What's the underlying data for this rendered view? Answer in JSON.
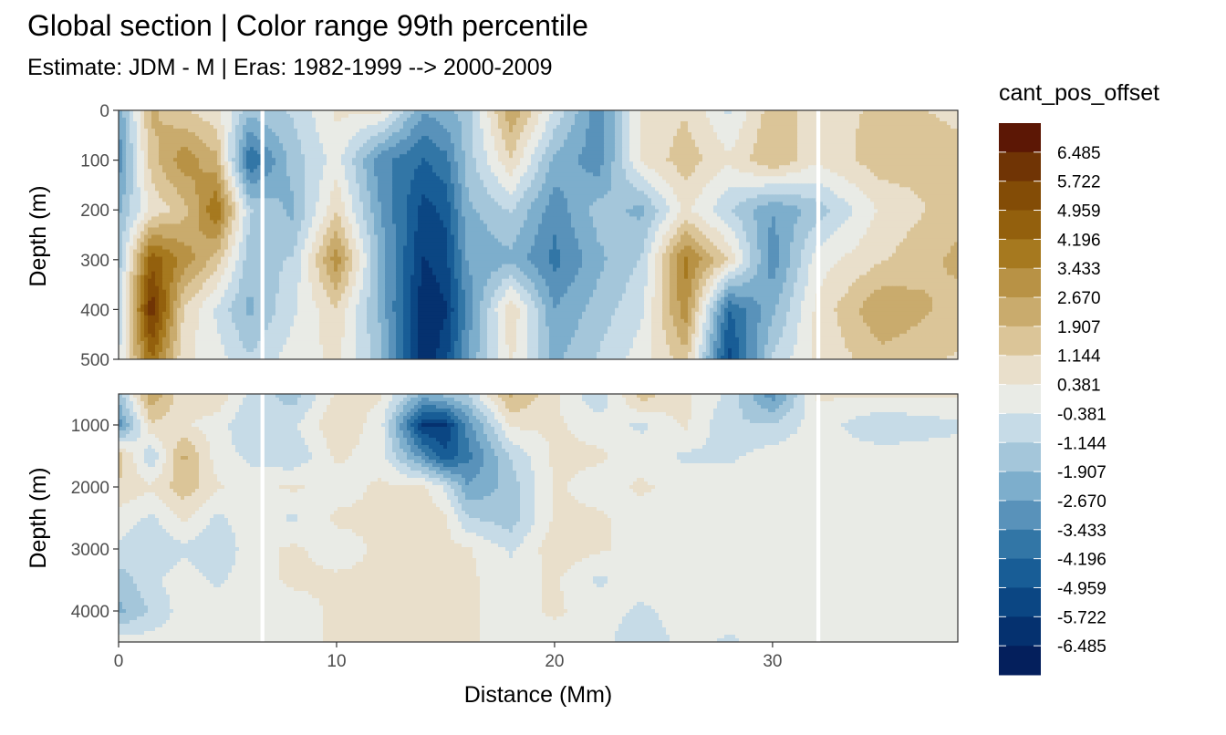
{
  "chart_data": {
    "type": "heatmap",
    "title": "Global section | Color range 99th percentile",
    "subtitle": "Estimate: JDM - M | Eras: 1982-1999 --> 2000-2009",
    "xlabel": "Distance (Mm)",
    "ylabel": "Depth (m)",
    "xlim": [
      0,
      38.5
    ],
    "x_ticks": [
      0,
      10,
      20,
      30
    ],
    "panels": [
      {
        "ylim": [
          0,
          500
        ],
        "y_ticks": [
          0,
          100,
          200,
          300,
          400,
          500
        ],
        "y_reversed": true
      },
      {
        "ylim": [
          500,
          4500
        ],
        "y_ticks": [
          1000,
          2000,
          3000,
          4000
        ],
        "y_reversed": true
      }
    ],
    "legend": {
      "title": "cant_pos_offset",
      "position": "right",
      "labels": [
        "6.485",
        "5.722",
        "4.959",
        "4.196",
        "3.433",
        "2.670",
        "1.907",
        "1.144",
        "0.381",
        "-0.381",
        "-1.144",
        "-1.907",
        "-2.670",
        "-3.433",
        "-4.196",
        "-4.959",
        "-5.722",
        "-6.485"
      ],
      "colors": [
        "#5c1705",
        "#703405",
        "#834c06",
        "#93600d",
        "#a6791f",
        "#b89245",
        "#c9ab6d",
        "#dbc598",
        "#e9dfcb",
        "#e9ebe6",
        "#c6dbe7",
        "#a4c6da",
        "#7daecc",
        "#5992ba",
        "#3276a6",
        "#185d96",
        "#0b4683",
        "#05316f",
        "#041f5c"
      ]
    },
    "field_note": "values estimated by eye from filled contours",
    "distance_nodes": [
      0,
      1.5,
      3,
      4.5,
      6,
      8,
      10,
      12,
      14,
      15,
      16,
      18,
      20,
      22,
      24,
      26,
      28,
      30,
      32,
      35,
      38.5
    ],
    "upper_depth_nodes": [
      0,
      100,
      200,
      300,
      400,
      500
    ],
    "upper_values": [
      [
        -2.5,
        2.0,
        1.2,
        0.5,
        -1.5,
        -1.0,
        0.5,
        0.5,
        -2.5,
        -2.0,
        -1.5,
        2.5,
        -0.5,
        -3.0,
        0.5,
        1.0,
        -0.5,
        1.5,
        0.8,
        1.2,
        1.0
      ],
      [
        -3.0,
        1.5,
        3.0,
        2.0,
        -4.0,
        -1.5,
        0.0,
        -3.0,
        -4.0,
        -3.5,
        -1.5,
        1.0,
        -2.0,
        -3.0,
        0.5,
        1.5,
        0.5,
        1.8,
        0.5,
        1.5,
        1.2
      ],
      [
        -2.0,
        0.5,
        1.5,
        4.0,
        -1.0,
        -2.0,
        1.0,
        -2.5,
        -5.0,
        -4.5,
        -2.0,
        -1.0,
        -3.0,
        -1.5,
        -2.0,
        0.5,
        -1.0,
        -2.5,
        -1.5,
        0.5,
        1.5
      ],
      [
        -1.5,
        4.5,
        3.0,
        1.5,
        -1.5,
        -1.0,
        3.0,
        -2.0,
        -5.5,
        -5.0,
        -2.5,
        -2.0,
        -3.5,
        -2.0,
        -1.0,
        3.5,
        1.0,
        -3.0,
        0.0,
        1.0,
        2.0
      ],
      [
        -1.0,
        6.0,
        1.0,
        -0.5,
        -2.0,
        -0.5,
        1.0,
        -2.0,
        -6.0,
        -5.5,
        -3.0,
        1.0,
        -2.5,
        -1.5,
        -0.5,
        3.0,
        -4.0,
        -2.0,
        0.5,
        2.5,
        1.5
      ],
      [
        -0.5,
        4.0,
        0.5,
        0.0,
        -1.0,
        0.0,
        0.5,
        -1.5,
        -6.0,
        -5.0,
        -2.5,
        0.5,
        -2.0,
        -1.0,
        0.0,
        1.5,
        -5.0,
        -1.0,
        0.5,
        1.5,
        1.0
      ]
    ],
    "lower_depth_nodes": [
      500,
      1000,
      1500,
      2000,
      2500,
      3000,
      3500,
      4000,
      4500
    ],
    "lower_values": [
      [
        -1.5,
        2.5,
        0.5,
        1.0,
        -0.5,
        -1.5,
        0.5,
        0.5,
        -2.0,
        -1.5,
        -1.0,
        2.0,
        0.5,
        -1.0,
        1.5,
        0.5,
        -0.5,
        -3.0,
        0.5,
        0.5,
        0.5
      ],
      [
        -3.0,
        1.0,
        0.5,
        0.0,
        -1.0,
        -0.5,
        1.0,
        0.0,
        -5.5,
        -5.5,
        -3.0,
        0.5,
        0.5,
        0.0,
        -0.5,
        0.5,
        -1.0,
        -1.0,
        0.0,
        -1.0,
        -0.5
      ],
      [
        1.5,
        -1.0,
        2.0,
        0.0,
        -0.5,
        -1.0,
        0.5,
        0.0,
        -3.0,
        -4.5,
        -3.5,
        -1.0,
        0.5,
        0.5,
        0.0,
        -0.5,
        -0.5,
        0.0,
        0.0,
        0.0,
        0.0
      ],
      [
        1.0,
        0.5,
        1.5,
        0.5,
        0.0,
        0.5,
        0.0,
        0.5,
        0.5,
        -0.5,
        -2.5,
        -1.5,
        0.5,
        0.0,
        0.5,
        0.0,
        0.0,
        0.0,
        0.0,
        0.0,
        0.0
      ],
      [
        0.0,
        -0.5,
        0.5,
        -0.5,
        0.0,
        -0.5,
        0.5,
        0.5,
        0.8,
        0.5,
        -1.0,
        -1.5,
        0.5,
        0.5,
        0.0,
        0.0,
        0.0,
        0.0,
        0.0,
        0.0,
        0.0
      ],
      [
        -0.5,
        -1.0,
        -0.5,
        -1.0,
        0.0,
        0.5,
        0.0,
        0.5,
        0.8,
        0.5,
        0.5,
        -0.5,
        0.8,
        0.5,
        0.0,
        0.0,
        0.0,
        0.0,
        0.0,
        0.0,
        0.0
      ],
      [
        -1.5,
        -0.5,
        0.0,
        -0.5,
        0.0,
        0.5,
        0.5,
        0.5,
        0.5,
        0.5,
        0.5,
        0.0,
        0.5,
        -0.5,
        0.0,
        0.0,
        0.0,
        0.0,
        0.0,
        0.0,
        0.0
      ],
      [
        -2.0,
        -1.0,
        0.0,
        0.0,
        0.0,
        0.0,
        0.5,
        0.5,
        0.5,
        0.5,
        0.5,
        0.0,
        0.5,
        0.0,
        -0.5,
        0.0,
        0.0,
        0.0,
        0.0,
        0.0,
        0.0
      ],
      [
        0.0,
        0.0,
        0.0,
        0.0,
        0.0,
        0.0,
        0.5,
        0.5,
        0.5,
        0.5,
        0.5,
        0.0,
        0.0,
        0.0,
        -1.0,
        0.0,
        -0.5,
        0.0,
        0.0,
        0.0,
        0.0
      ]
    ],
    "data_gaps_distance": [
      6.6,
      32.1
    ],
    "data_gaps_width": 0.18,
    "color_limits": [
      -6.866,
      6.866
    ]
  }
}
